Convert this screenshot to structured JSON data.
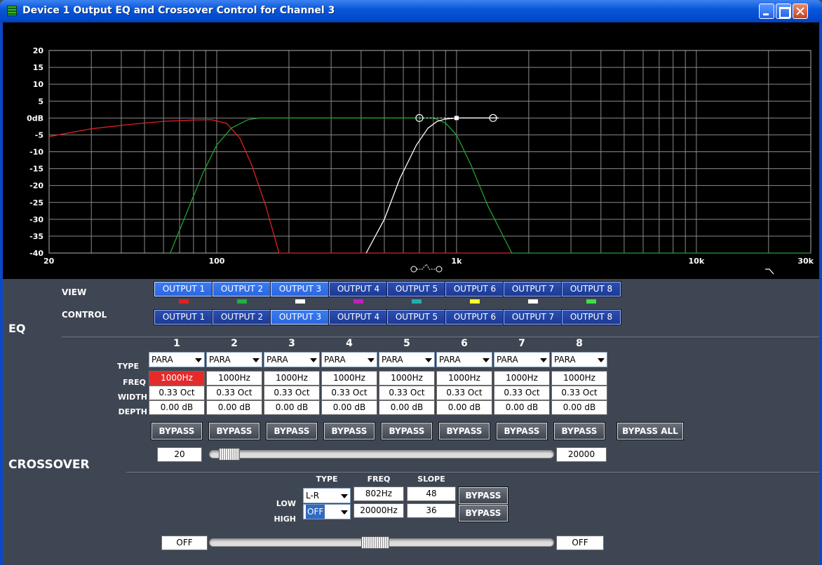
{
  "window": {
    "title": "Device 1 Output EQ and Crossover Control for Channel 3"
  },
  "graph": {
    "y_ticks": [
      "20",
      "15",
      "10",
      "5",
      "0dB",
      "-5",
      "-10",
      "-15",
      "-20",
      "-25",
      "-30",
      "-35",
      "-40"
    ],
    "x_ticks": [
      "20",
      "100",
      "1k",
      "10k",
      "30k"
    ],
    "colors": {
      "background": "#000000",
      "grid": "#8a8a8a",
      "output1": "#e02020",
      "output2": "#20a030",
      "output3": "#ffffff"
    }
  },
  "view": {
    "label": "VIEW",
    "buttons": [
      "OUTPUT 1",
      "OUTPUT 2",
      "OUTPUT 3",
      "OUTPUT 4",
      "OUTPUT 5",
      "OUTPUT 6",
      "OUTPUT 7",
      "OUTPUT 8"
    ],
    "swatch_colors": [
      "#e02020",
      "#20b040",
      "#ffffff",
      "#c020c0",
      "#20b0b0",
      "#ffff30",
      "#ffffff",
      "#40e040"
    ]
  },
  "control": {
    "label": "CONTROL",
    "buttons": [
      "OUTPUT 1",
      "OUTPUT 2",
      "OUTPUT 3",
      "OUTPUT 4",
      "OUTPUT 5",
      "OUTPUT 6",
      "OUTPUT 7",
      "OUTPUT 8"
    ]
  },
  "eq": {
    "tab_label": "EQ",
    "row_labels": {
      "type": "TYPE",
      "freq": "FREQ",
      "width": "WIDTH",
      "depth": "DEPTH"
    },
    "bands": [
      {
        "num": "1",
        "type": "PARA",
        "freq": "1000Hz",
        "width": "0.33 Oct",
        "depth": "0.00 dB",
        "bypass": "BYPASS"
      },
      {
        "num": "2",
        "type": "PARA",
        "freq": "1000Hz",
        "width": "0.33 Oct",
        "depth": "0.00 dB",
        "bypass": "BYPASS"
      },
      {
        "num": "3",
        "type": "PARA",
        "freq": "1000Hz",
        "width": "0.33 Oct",
        "depth": "0.00 dB",
        "bypass": "BYPASS"
      },
      {
        "num": "4",
        "type": "PARA",
        "freq": "1000Hz",
        "width": "0.33 Oct",
        "depth": "0.00 dB",
        "bypass": "BYPASS"
      },
      {
        "num": "5",
        "type": "PARA",
        "freq": "1000Hz",
        "width": "0.33 Oct",
        "depth": "0.00 dB",
        "bypass": "BYPASS"
      },
      {
        "num": "6",
        "type": "PARA",
        "freq": "1000Hz",
        "width": "0.33 Oct",
        "depth": "0.00 dB",
        "bypass": "BYPASS"
      },
      {
        "num": "7",
        "type": "PARA",
        "freq": "1000Hz",
        "width": "0.33 Oct",
        "depth": "0.00 dB",
        "bypass": "BYPASS"
      },
      {
        "num": "8",
        "type": "PARA",
        "freq": "1000Hz",
        "width": "0.33 Oct",
        "depth": "0.00 dB",
        "bypass": "BYPASS"
      }
    ],
    "bypass_all": "BYPASS ALL",
    "range_min": "20",
    "range_max": "20000",
    "slider_level": 0.03
  },
  "crossover": {
    "tab_label": "CROSSOVER",
    "headers": {
      "type": "TYPE",
      "freq": "FREQ",
      "slope": "SLOPE"
    },
    "low": {
      "label": "LOW",
      "type": "L-R",
      "freq": "802Hz",
      "slope": "48",
      "bypass": "BYPASS"
    },
    "high": {
      "label": "HIGH",
      "type": "OFF",
      "freq": "20000Hz",
      "slope": "36",
      "bypass": "BYPASS"
    },
    "range_min": "OFF",
    "range_max": "OFF",
    "slider_level": 0.48
  }
}
